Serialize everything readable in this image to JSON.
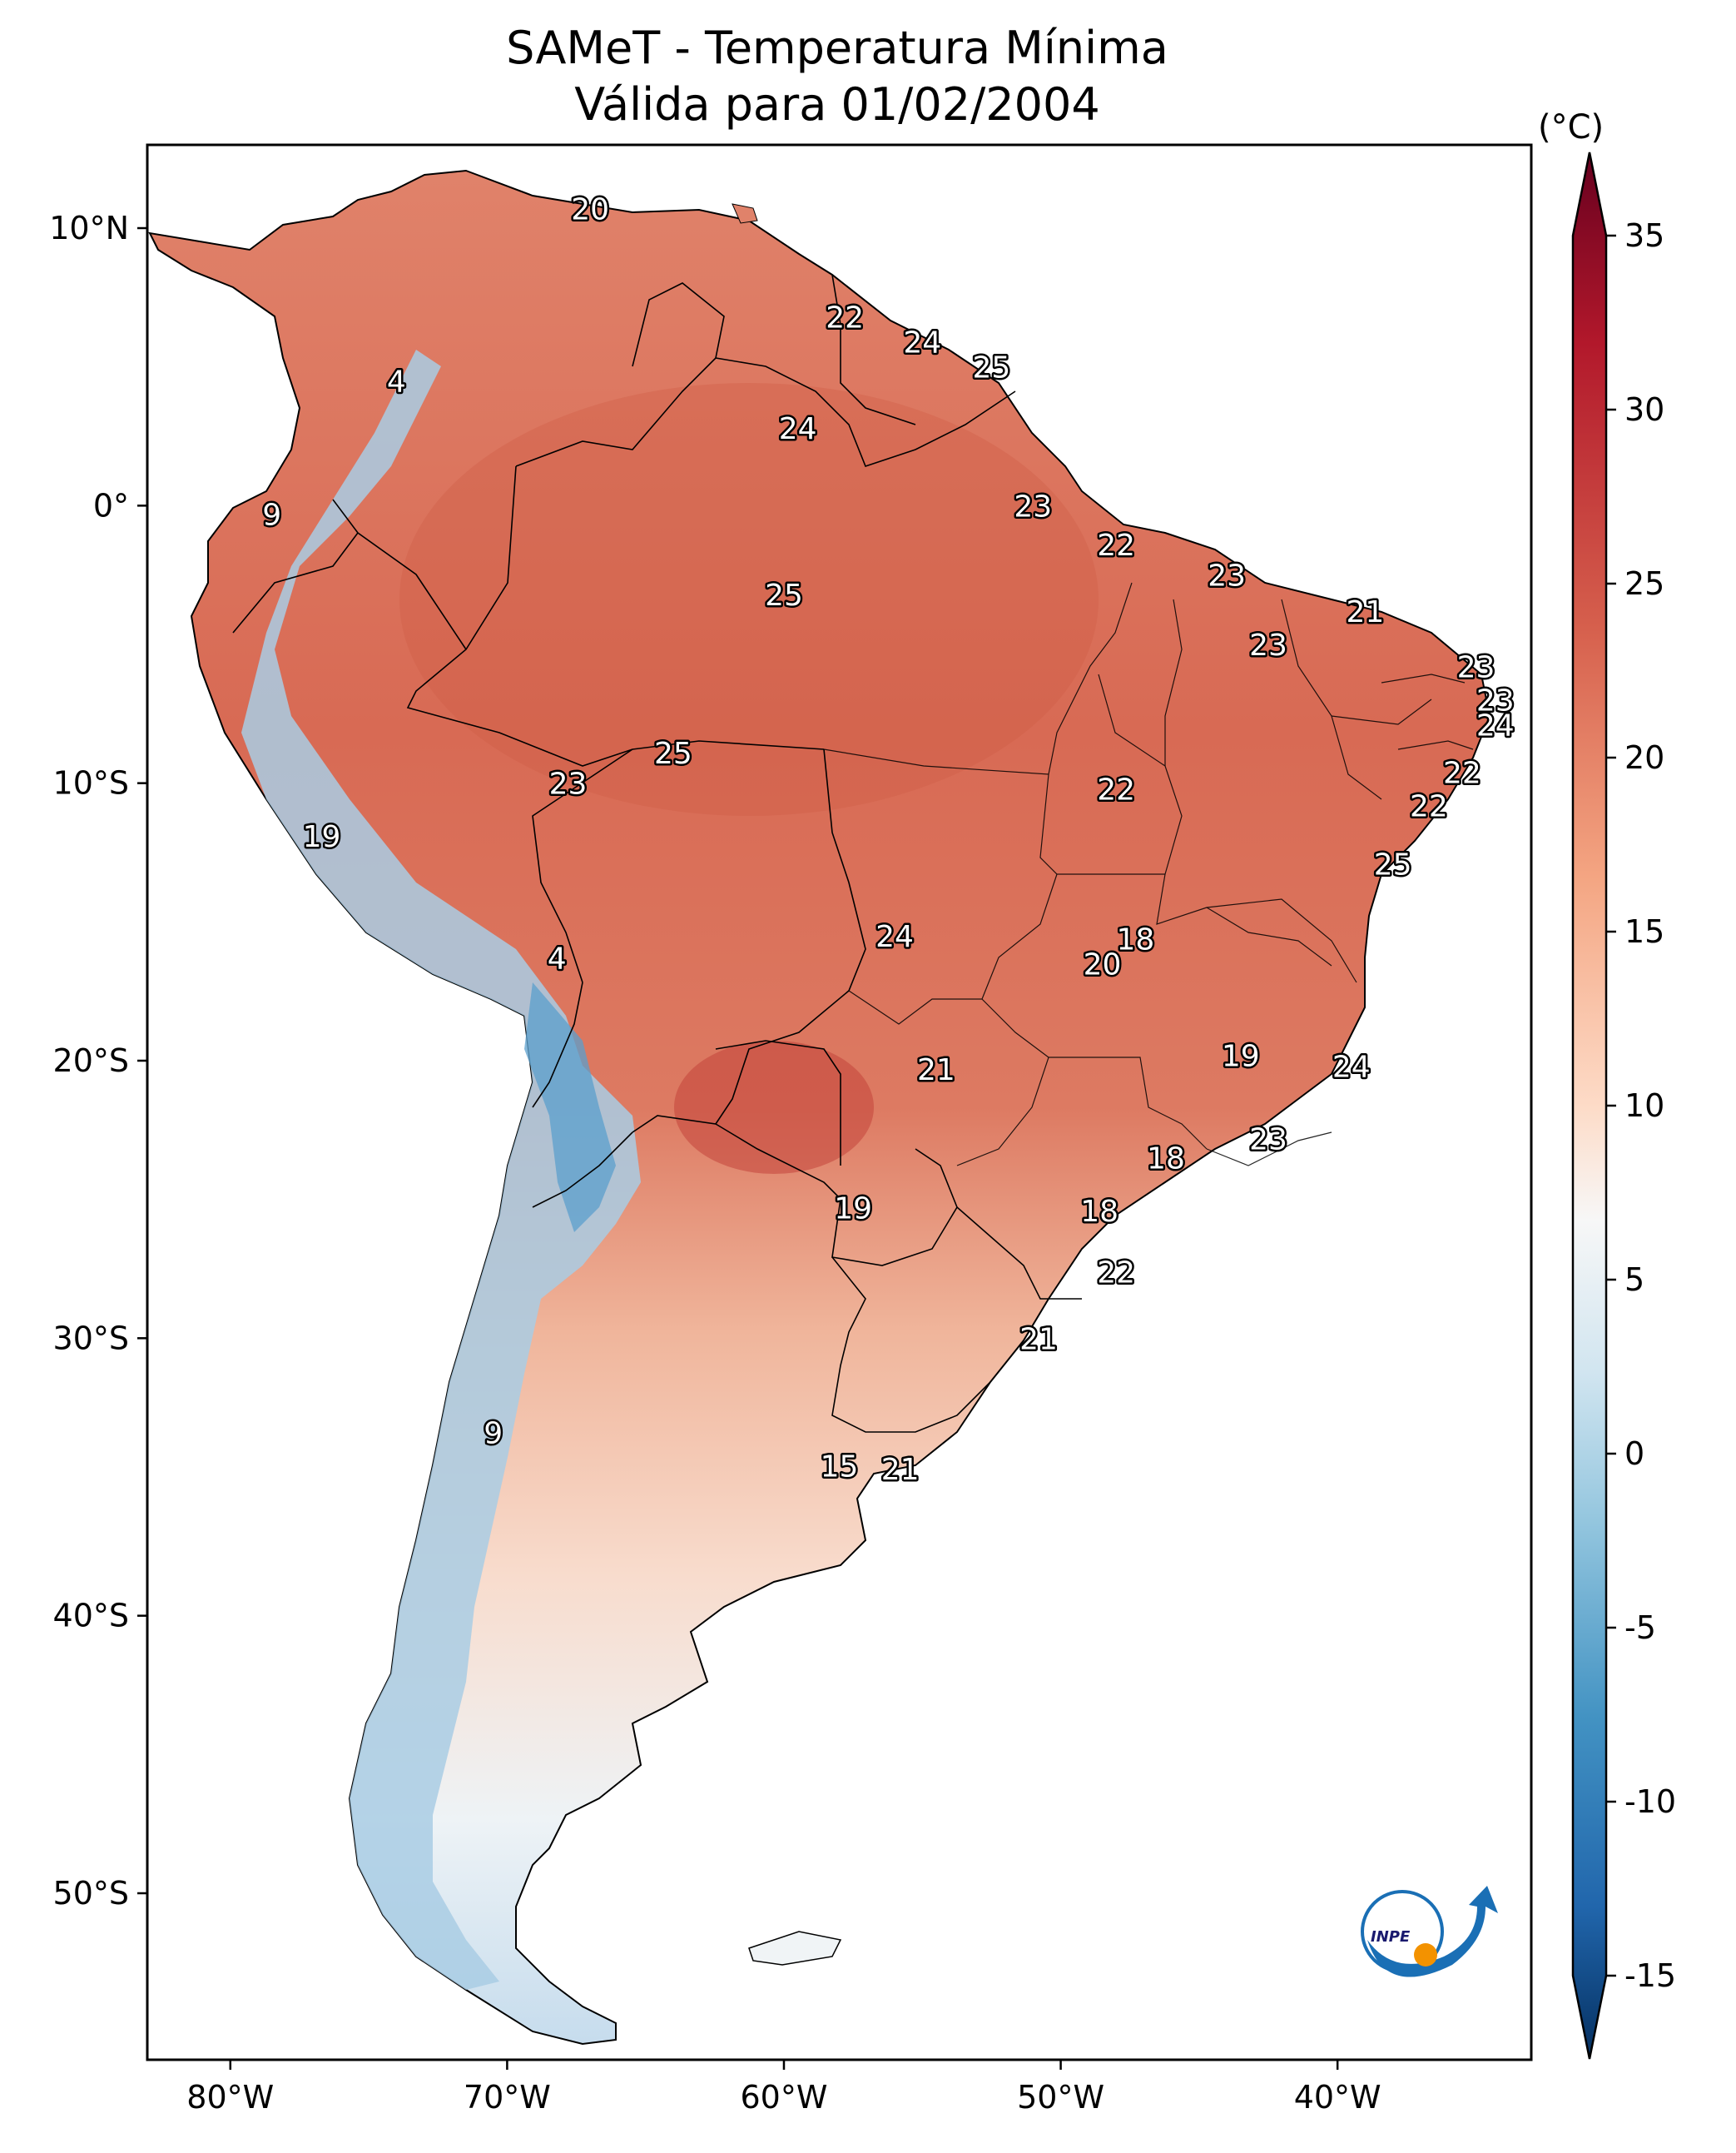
{
  "title": {
    "line1": "SAMeT - Temperatura Mínima",
    "line2": "Válida para 01/02/2004"
  },
  "colorbar": {
    "unit": "(°C)",
    "ticks": [
      "35",
      "30",
      "25",
      "20",
      "15",
      "10",
      "5",
      "0",
      "-5",
      "-10",
      "-15"
    ],
    "tick_values": [
      35,
      30,
      25,
      20,
      15,
      10,
      5,
      0,
      -5,
      -10,
      -15
    ],
    "range": [
      -15,
      35
    ],
    "colormap": "RdBu_r",
    "colors": [
      "#67001f",
      "#b2182b",
      "#d6604d",
      "#f4a582",
      "#fddbc7",
      "#f7f7f7",
      "#d1e5f0",
      "#92c5de",
      "#4393c3",
      "#2166ac",
      "#053061"
    ]
  },
  "axes": {
    "lon_ticks": [
      "80°W",
      "70°W",
      "60°W",
      "50°W",
      "40°W"
    ],
    "lat_ticks": [
      "10°N",
      "0°",
      "10°S",
      "20°S",
      "30°S",
      "40°S",
      "50°S"
    ]
  },
  "chart_data": {
    "type": "heatmap",
    "title": "SAMeT - Temperatura Mínima",
    "subtitle": "Válida para 01/02/2004",
    "xlim": [
      -83,
      -33
    ],
    "ylim": [
      -56,
      13
    ],
    "colorbar_range": [
      -15,
      35
    ],
    "annotations": [
      {
        "lon": -67.0,
        "lat": 10.7,
        "value": "20"
      },
      {
        "lon": -57.8,
        "lat": 6.8,
        "value": "22"
      },
      {
        "lon": -55.0,
        "lat": 5.9,
        "value": "24"
      },
      {
        "lon": -52.5,
        "lat": 5.0,
        "value": "25"
      },
      {
        "lon": -74.0,
        "lat": 4.5,
        "value": "4"
      },
      {
        "lon": -59.5,
        "lat": 2.8,
        "value": "24"
      },
      {
        "lon": -51.0,
        "lat": 0.0,
        "value": "23"
      },
      {
        "lon": -78.5,
        "lat": -0.3,
        "value": "9"
      },
      {
        "lon": -48.0,
        "lat": -1.4,
        "value": "22"
      },
      {
        "lon": -44.0,
        "lat": -2.5,
        "value": "23"
      },
      {
        "lon": -60.0,
        "lat": -3.2,
        "value": "25"
      },
      {
        "lon": -39.0,
        "lat": -3.8,
        "value": "21"
      },
      {
        "lon": -42.5,
        "lat": -5.0,
        "value": "23"
      },
      {
        "lon": -35.0,
        "lat": -5.8,
        "value": "23"
      },
      {
        "lon": -34.3,
        "lat": -7.0,
        "value": "23"
      },
      {
        "lon": -34.3,
        "lat": -7.9,
        "value": "24"
      },
      {
        "lon": -64.0,
        "lat": -8.9,
        "value": "25"
      },
      {
        "lon": -35.5,
        "lat": -9.6,
        "value": "22"
      },
      {
        "lon": -67.8,
        "lat": -10.0,
        "value": "23"
      },
      {
        "lon": -48.0,
        "lat": -10.2,
        "value": "22"
      },
      {
        "lon": -36.7,
        "lat": -10.8,
        "value": "22"
      },
      {
        "lon": -76.7,
        "lat": -11.9,
        "value": "19"
      },
      {
        "lon": -38.0,
        "lat": -12.9,
        "value": "25"
      },
      {
        "lon": -56.0,
        "lat": -15.5,
        "value": "24"
      },
      {
        "lon": -47.3,
        "lat": -15.6,
        "value": "18"
      },
      {
        "lon": -48.5,
        "lat": -16.5,
        "value": "20"
      },
      {
        "lon": -68.2,
        "lat": -16.3,
        "value": "4"
      },
      {
        "lon": -43.5,
        "lat": -19.8,
        "value": "19"
      },
      {
        "lon": -39.5,
        "lat": -20.2,
        "value": "24"
      },
      {
        "lon": -54.5,
        "lat": -20.3,
        "value": "21"
      },
      {
        "lon": -42.5,
        "lat": -22.8,
        "value": "23"
      },
      {
        "lon": -46.2,
        "lat": -23.5,
        "value": "18"
      },
      {
        "lon": -57.5,
        "lat": -25.3,
        "value": "19"
      },
      {
        "lon": -48.6,
        "lat": -25.4,
        "value": "18"
      },
      {
        "lon": -48.0,
        "lat": -27.6,
        "value": "22"
      },
      {
        "lon": -50.8,
        "lat": -30.0,
        "value": "21"
      },
      {
        "lon": -70.5,
        "lat": -33.4,
        "value": "9"
      },
      {
        "lon": -58.0,
        "lat": -34.6,
        "value": "15"
      },
      {
        "lon": -55.8,
        "lat": -34.7,
        "value": "21"
      }
    ]
  },
  "logo": {
    "text": "INPE"
  }
}
